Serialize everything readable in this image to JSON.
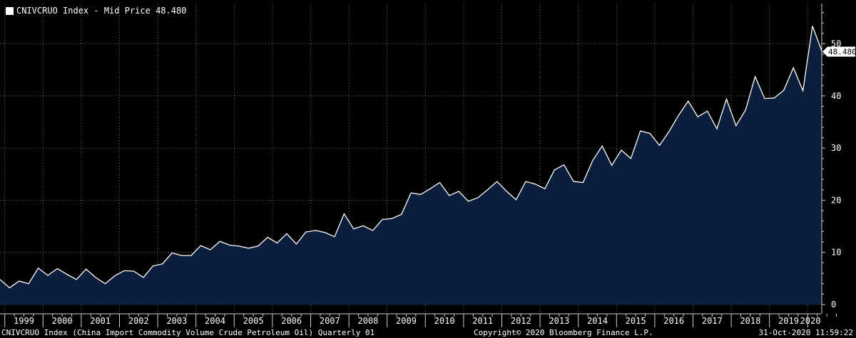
{
  "legend": {
    "label": "CNIVCRUO Index - Mid Price 48.480"
  },
  "last_value_label": "48.480",
  "footer": {
    "left": "CNIVCRUO Index (China Import Commodity Volume Crude Petroleum Oil)  Quarterly 01",
    "middle": "Copyright© 2020 Bloomberg Finance L.P.",
    "right": "31-Oct-2020 11:59:22"
  },
  "colors": {
    "background": "#000000",
    "area": "#0b1e3c",
    "line": "#ffffff",
    "grid": "#8a8a8a"
  },
  "chart_data": {
    "type": "area",
    "title": "",
    "series": [
      {
        "name": "CNIVCRUO Index - Mid Price",
        "start": "1998 Q4",
        "frequency": "quarterly",
        "values": [
          4.8,
          3.2,
          4.5,
          4.0,
          7.0,
          5.6,
          6.9,
          5.8,
          4.8,
          6.8,
          5.2,
          4.0,
          5.5,
          6.5,
          6.4,
          5.2,
          7.4,
          7.8,
          9.9,
          9.4,
          9.4,
          11.3,
          10.5,
          12.1,
          11.4,
          11.2,
          10.8,
          11.2,
          12.9,
          11.8,
          13.6,
          11.6,
          13.9,
          14.2,
          13.8,
          13.0,
          17.4,
          14.5,
          15.1,
          14.2,
          16.3,
          16.5,
          17.3,
          21.4,
          21.1,
          22.2,
          23.4,
          20.9,
          21.7,
          19.8,
          20.5,
          22.0,
          23.6,
          21.7,
          20.1,
          23.6,
          23.1,
          22.2,
          25.8,
          26.8,
          23.6,
          23.4,
          27.6,
          30.4,
          26.7,
          29.6,
          28.0,
          33.3,
          32.8,
          30.5,
          33.2,
          36.3,
          39.0,
          36.0,
          37.1,
          33.7,
          39.4,
          34.3,
          37.3,
          43.7,
          39.5,
          39.6,
          41.1,
          45.4,
          41.0,
          53.4,
          48.48
        ]
      }
    ],
    "x_ticks": [
      "1999",
      "2000",
      "2001",
      "2002",
      "2003",
      "2004",
      "2005",
      "2006",
      "2007",
      "2008",
      "2009",
      "2010",
      "2011",
      "2012",
      "2013",
      "2014",
      "2015",
      "2016",
      "2017",
      "2018",
      "2019",
      "2020"
    ],
    "y_ticks": [
      0,
      10,
      20,
      30,
      40,
      50
    ],
    "ylim": [
      0,
      58
    ],
    "grid": true,
    "y_axis_side": "right",
    "xlabel": "",
    "ylabel": ""
  }
}
